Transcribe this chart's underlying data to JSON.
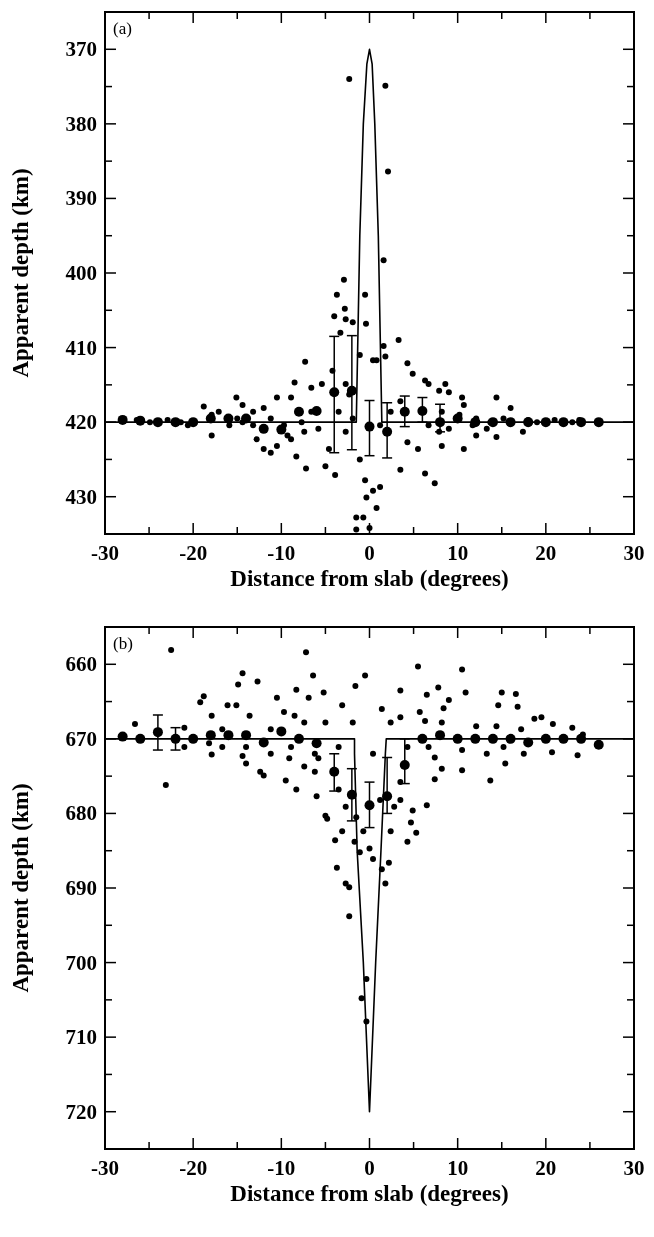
{
  "chart_data": [
    {
      "type": "scatter",
      "xlabel": "Distance from slab (degrees)",
      "ylabel": "Apparent depth (km)",
      "annotations": [
        "(a)"
      ],
      "xlim": [
        -30,
        30
      ],
      "ylim": [
        435,
        365
      ],
      "xticks": [
        -30,
        {
          "value": -25,
          "label": null
        },
        -20,
        {
          "value": -15,
          "label": null
        },
        -10,
        {
          "value": -5,
          "label": null
        },
        0,
        {
          "value": 5,
          "label": null
        },
        10,
        {
          "value": 15,
          "label": null
        },
        20,
        {
          "value": 25,
          "label": null
        },
        30
      ],
      "yticks": [
        {
          "value": 365,
          "label": null
        },
        370,
        {
          "value": 375,
          "label": null
        },
        380,
        {
          "value": 385,
          "label": null
        },
        390,
        {
          "value": 395,
          "label": null
        },
        400,
        {
          "value": 405,
          "label": null
        },
        410,
        {
          "value": 415,
          "label": null
        },
        420,
        {
          "value": 425,
          "label": null
        },
        430,
        {
          "value": 435,
          "label": null
        }
      ],
      "series": [
        {
          "type": "scatter",
          "color": "#000000",
          "marker": "circle",
          "x": [
            -2.3,
            1.8,
            2.1,
            1.6,
            -2.9,
            -3.7,
            -2.8,
            -4.0,
            -2.7,
            -1.9,
            -0.4,
            -0.5,
            -3.3,
            3.3,
            -7.3,
            -1.1,
            0.4,
            1.6,
            4.3,
            4.9,
            6.3,
            7.9,
            9.0,
            -8.5,
            -6.6,
            -5.4,
            -8.9,
            -10.5,
            14.4,
            10.5,
            10.7,
            16.0,
            -15.1,
            -14.4,
            -18.8,
            -17.9,
            -17.1,
            -13.2,
            -12.0,
            -11.2,
            -15.9,
            -17.9,
            -12.8,
            -12.0,
            -11.2,
            -10.5,
            -9.3,
            -8.3,
            -7.2,
            -5.0,
            -3.9,
            -4.6,
            -2.7,
            -1.1,
            -0.5,
            -0.35,
            0.4,
            1.2,
            0.8,
            -1.5,
            -0.7,
            -1.5,
            0.0,
            3.5,
            6.3,
            7.4,
            4.3,
            5.5,
            8.2,
            10.7,
            12.1,
            13.3,
            14.4,
            17.4,
            15.2,
            18.0,
            19.0,
            23.0,
            12.1,
            10.2,
            8.2,
            3.5,
            2.4,
            -3.5,
            -1.9,
            -6.6,
            -7.7,
            -9.7,
            -14.4,
            -15.0,
            -20.6,
            -21.4,
            -22.9,
            -24.9,
            -26.4,
            23.8,
            21.0,
            6.7,
            7.9,
            9.0,
            -5.8,
            -7.4,
            1.2,
            -8.9,
            -13.2,
            8.6,
            6.7,
            0.8,
            1.8,
            -2.7,
            -4.2,
            -2.3,
            11.7,
            13.7
          ],
          "values": [
            374,
            374.9,
            386.4,
            398.3,
            400.9,
            402.9,
            404.8,
            405.8,
            406.2,
            406.6,
            406.8,
            402.9,
            408,
            409,
            411.9,
            411,
            411.7,
            409.8,
            412.1,
            413.5,
            414.4,
            415.8,
            416,
            414.7,
            415.4,
            414.9,
            416.7,
            416.7,
            416.7,
            416.7,
            417.7,
            418.1,
            416.7,
            417.7,
            417.9,
            419,
            418.6,
            418.6,
            418.1,
            419.5,
            420.4,
            421.8,
            422.3,
            423.6,
            424.1,
            423.2,
            421.8,
            424.6,
            426.2,
            425.9,
            427.1,
            423.6,
            421.3,
            425,
            427.8,
            430.1,
            429.2,
            428.7,
            431.5,
            432.8,
            432.8,
            434.4,
            434.2,
            426.4,
            426.9,
            428.2,
            422.7,
            423.6,
            423.2,
            423.6,
            421.8,
            420.9,
            422,
            421.3,
            419.5,
            419.7,
            420,
            420,
            419.5,
            419,
            418.6,
            417.2,
            418.6,
            418.6,
            419.5,
            418.6,
            420,
            420.4,
            420,
            419.5,
            420.4,
            420,
            419.7,
            420,
            419.7,
            419.7,
            419.7,
            420.4,
            421.3,
            420.9,
            420.9,
            421.3,
            420.4,
            422.3,
            420.4,
            414.9,
            414.9,
            411.7,
            411.2,
            414.9,
            413.1,
            416.3,
            420.4,
            420
          ]
        },
        {
          "type": "scatter",
          "color": "#000000",
          "marker": "circle",
          "x": [
            -28,
            -26,
            -24,
            -22,
            -20,
            -18,
            -16,
            -14,
            -12,
            -10,
            -8,
            -6,
            -4,
            -2,
            0,
            2,
            4,
            6,
            8,
            10,
            12,
            14,
            16,
            18,
            20,
            22,
            24,
            26
          ],
          "values": [
            419.7,
            419.8,
            420,
            420,
            420,
            419.5,
            419.5,
            419.5,
            420.9,
            421,
            418.6,
            418.5,
            416,
            415.8,
            420.6,
            421.3,
            418.6,
            418.5,
            420,
            419.5,
            420,
            420,
            420,
            420,
            420,
            420,
            420,
            420
          ],
          "errors": [
            null,
            null,
            null,
            null,
            null,
            null,
            null,
            null,
            null,
            null,
            null,
            null,
            [
              408.5,
              424.1
            ],
            [
              408.4,
              423.7
            ],
            [
              417.1,
              424.5
            ],
            [
              417.4,
              424.8
            ],
            [
              416.5,
              420.6
            ],
            [
              416.7,
              420
            ],
            [
              417.6,
              421.3
            ],
            null,
            null,
            null,
            null,
            null,
            null,
            null,
            null,
            null
          ]
        },
        {
          "type": "line",
          "color": "#000000",
          "line_style": "solid",
          "x": [
            -30,
            -1.5,
            -1.1,
            -0.7,
            -0.3,
            0,
            0.3,
            0.6,
            1.0,
            1.4,
            30
          ],
          "values": [
            420,
            420,
            395,
            380,
            372,
            370,
            372,
            380,
            395,
            420,
            420
          ]
        }
      ]
    },
    {
      "type": "scatter",
      "xlabel": "Distance from slab (degrees)",
      "ylabel": "Apparent depth (km)",
      "annotations": [
        "(b)"
      ],
      "xlim": [
        -30,
        30
      ],
      "ylim": [
        725,
        655
      ],
      "xticks": [
        -30,
        {
          "value": -25,
          "label": null
        },
        -20,
        {
          "value": -15,
          "label": null
        },
        -10,
        {
          "value": -5,
          "label": null
        },
        0,
        {
          "value": 5,
          "label": null
        },
        10,
        {
          "value": 15,
          "label": null
        },
        20,
        {
          "value": 25,
          "label": null
        },
        30
      ],
      "yticks": [
        {
          "value": 655,
          "label": null
        },
        660,
        {
          "value": 665,
          "label": null
        },
        670,
        {
          "value": 675,
          "label": null
        },
        680,
        {
          "value": 685,
          "label": null
        },
        690,
        {
          "value": 695,
          "label": null
        },
        700,
        {
          "value": 705,
          "label": null
        },
        710,
        {
          "value": 715,
          "label": null
        },
        720,
        {
          "value": 725,
          "label": null
        }
      ],
      "series": [
        {
          "type": "scatter",
          "color": "#000000",
          "marker": "circle",
          "x": [
            -22.5,
            -7.2,
            -6.4,
            -14.4,
            -12.7,
            -14.9,
            -0.5,
            5.5,
            10.5,
            -1.6,
            3.5,
            6.5,
            7.8,
            10.9,
            15,
            16.6,
            14.6,
            16.8,
            -18.8,
            -19.2,
            -16.1,
            -15.1,
            -10.5,
            -8.3,
            -6.9,
            -5.2,
            -3.1,
            1.4,
            3.5,
            5.7,
            9,
            8.4,
            19.5,
            18.7,
            20.8,
            23,
            -17.9,
            -13.6,
            -9.7,
            -8.5,
            -7.4,
            -5,
            -1.9,
            2.4,
            6.3,
            8.2,
            12.1,
            14.4,
            17.2,
            -26.6,
            -21,
            -16.7,
            -11.2,
            24.2,
            23.6,
            20.7,
            17.5,
            15.2,
            13.3,
            10.5,
            7.4,
            6.7,
            4.3,
            0.4,
            -3.5,
            -6.2,
            -8.9,
            -11.2,
            -14,
            -16.7,
            -18.2,
            -21,
            -23.1,
            -17.9,
            -14,
            -12,
            -12.4,
            -9.5,
            -8.3,
            -7.4,
            -6,
            -6.2,
            -5,
            -4.8,
            -3.9,
            -3.7,
            -2.7,
            -2.3,
            -2.3,
            -3.1,
            -1.7,
            -1.1,
            -0.7,
            0.4,
            0,
            -0.35,
            -0.9,
            -0.35,
            1.4,
            1.8,
            2.2,
            2.4,
            2.8,
            3.5,
            4.7,
            4.3,
            5.3,
            6.5,
            4.9,
            7.4,
            8.2,
            10.5,
            13.7,
            15.4,
            3.5,
            -3.5,
            -2.7,
            -1.5,
            1.2,
            -5.8,
            -9.1,
            -14.4
          ],
          "values": [
            658.1,
            658.4,
            661.5,
            661.2,
            662.3,
            662.7,
            661.5,
            660.3,
            660.7,
            662.9,
            663.5,
            664.1,
            663.1,
            663.8,
            663.8,
            664,
            665.5,
            665.7,
            664.3,
            665.1,
            665.5,
            665.5,
            664.5,
            663.4,
            664.5,
            663.8,
            665.5,
            666,
            667.1,
            666.4,
            664.8,
            665.9,
            667.1,
            667.3,
            668,
            668.5,
            666.9,
            666.9,
            666.4,
            666.9,
            667.8,
            667.8,
            667.8,
            667.8,
            667.6,
            667.8,
            668.3,
            668.3,
            668.7,
            668,
            668.5,
            668.7,
            668.7,
            669.4,
            672.2,
            671.8,
            672,
            671.1,
            672,
            671.5,
            672.5,
            671.1,
            671.1,
            672,
            671.1,
            672,
            671.1,
            672,
            671.1,
            671.1,
            670.6,
            671.1,
            676.2,
            672.1,
            673.3,
            674.9,
            674.4,
            675.6,
            676.8,
            673.7,
            677.7,
            674.4,
            680.3,
            680.7,
            683.6,
            687.3,
            689.4,
            689.9,
            693.8,
            682.4,
            683.8,
            685.2,
            682.4,
            686.1,
            684.7,
            702.2,
            704.8,
            707.9,
            687.5,
            689.4,
            686.6,
            682.4,
            679.1,
            678.2,
            681.2,
            683.8,
            682.6,
            678.9,
            679.6,
            675.4,
            674,
            674.2,
            675.6,
            673.3,
            675.8,
            676.8,
            679.1,
            680.5,
            678.2,
            672.6,
            672.6,
            672.3
          ]
        },
        {
          "type": "scatter",
          "color": "#000000",
          "marker": "circle",
          "x": [
            -28,
            -26,
            -24,
            -22,
            -20,
            -18,
            -16,
            -14,
            -12,
            -10,
            -8,
            -6,
            -4,
            -2,
            0,
            2,
            4,
            6,
            8,
            10,
            12,
            14,
            16,
            18,
            20,
            22,
            24,
            26
          ],
          "values": [
            669.7,
            670,
            669.1,
            670,
            670,
            669.5,
            669.5,
            669.5,
            670.5,
            669,
            670,
            670.6,
            674.4,
            677.5,
            678.9,
            677.7,
            673.5,
            670,
            669.5,
            670,
            670,
            670,
            670,
            670.5,
            670,
            670,
            670,
            670.8
          ],
          "errors": [
            null,
            null,
            [
              666.8,
              671.5
            ],
            [
              668.5,
              671.5
            ],
            null,
            null,
            null,
            null,
            null,
            null,
            null,
            null,
            [
              672,
              677
            ],
            [
              674,
              681
            ],
            [
              675.8,
              681.9
            ],
            [
              672.5,
              680
            ],
            [
              670,
              676
            ],
            null,
            null,
            null,
            null,
            null,
            null,
            null,
            null,
            null,
            null,
            null
          ]
        },
        {
          "type": "line",
          "color": "#000000",
          "line_style": "solid",
          "x": [
            -30,
            -1.7,
            -1.7,
            -1.4,
            -0.7,
            0,
            0.7,
            1.3,
            1.8,
            1.9,
            30
          ],
          "values": [
            670,
            670,
            672,
            685,
            700,
            720,
            700,
            685,
            672,
            670,
            670
          ]
        }
      ]
    }
  ]
}
